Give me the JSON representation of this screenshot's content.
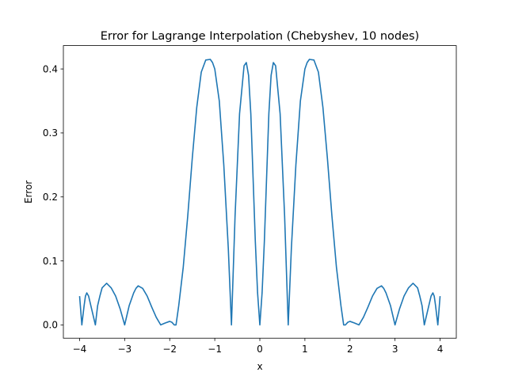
{
  "chart_data": {
    "type": "line",
    "title": "Error for Lagrange Interpolation (Chebyshev, 10 nodes)",
    "xlabel": "x",
    "ylabel": "Error",
    "xlim": [
      -4.36,
      4.36
    ],
    "ylim": [
      -0.0208,
      0.4365
    ],
    "xticks": [
      -4,
      -3,
      -2,
      -1,
      0,
      1,
      2,
      3,
      4
    ],
    "xtick_labels": [
      "−4",
      "−3",
      "−2",
      "−1",
      "0",
      "1",
      "2",
      "3",
      "4"
    ],
    "yticks": [
      0.0,
      0.1,
      0.2,
      0.3,
      0.4
    ],
    "ytick_labels": [
      "0.0",
      "0.1",
      "0.2",
      "0.3",
      "0.4"
    ],
    "grid": false,
    "series": [
      {
        "color": "#1f77b4",
        "x": [
          -4.0,
          -3.95,
          -3.9,
          -3.87,
          -3.84,
          -3.8,
          -3.75,
          -3.7,
          -3.65,
          -3.6,
          -3.55,
          -3.5,
          -3.4,
          -3.3,
          -3.2,
          -3.1,
          -3.0,
          -2.9,
          -2.8,
          -2.75,
          -2.7,
          -2.6,
          -2.5,
          -2.4,
          -2.3,
          -2.2,
          -2.1,
          -2.0,
          -1.95,
          -1.9,
          -1.86,
          -1.8,
          -1.7,
          -1.6,
          -1.5,
          -1.4,
          -1.3,
          -1.2,
          -1.1,
          -1.05,
          -1.0,
          -0.9,
          -0.8,
          -0.7,
          -0.63,
          -0.55,
          -0.45,
          -0.35,
          -0.3,
          -0.25,
          -0.2,
          -0.15,
          -0.1,
          -0.05,
          0.0,
          0.05,
          0.1,
          0.15,
          0.2,
          0.25,
          0.3,
          0.35,
          0.45,
          0.55,
          0.63,
          0.7,
          0.8,
          0.9,
          1.0,
          1.05,
          1.1,
          1.2,
          1.3,
          1.4,
          1.5,
          1.6,
          1.7,
          1.8,
          1.86,
          1.9,
          1.95,
          2.0,
          2.1,
          2.2,
          2.3,
          2.4,
          2.5,
          2.6,
          2.7,
          2.75,
          2.8,
          2.9,
          3.0,
          3.1,
          3.2,
          3.3,
          3.4,
          3.5,
          3.55,
          3.6,
          3.65,
          3.7,
          3.75,
          3.8,
          3.84,
          3.87,
          3.9,
          3.95,
          4.0
        ],
        "y": [
          0.045,
          0.0,
          0.03,
          0.045,
          0.05,
          0.045,
          0.03,
          0.015,
          0.0,
          0.03,
          0.045,
          0.058,
          0.065,
          0.058,
          0.045,
          0.025,
          0.0,
          0.03,
          0.05,
          0.057,
          0.061,
          0.057,
          0.045,
          0.028,
          0.012,
          0.0,
          0.003,
          0.0055,
          0.004,
          0.0,
          0.0,
          0.03,
          0.09,
          0.17,
          0.26,
          0.34,
          0.395,
          0.414,
          0.415,
          0.41,
          0.4,
          0.35,
          0.25,
          0.12,
          0.0,
          0.17,
          0.33,
          0.405,
          0.41,
          0.39,
          0.33,
          0.23,
          0.13,
          0.05,
          0.0,
          0.05,
          0.13,
          0.23,
          0.33,
          0.39,
          0.41,
          0.405,
          0.33,
          0.17,
          0.0,
          0.12,
          0.25,
          0.35,
          0.4,
          0.41,
          0.415,
          0.414,
          0.395,
          0.34,
          0.26,
          0.17,
          0.09,
          0.03,
          0.0,
          0.0,
          0.004,
          0.0055,
          0.003,
          0.0,
          0.012,
          0.028,
          0.045,
          0.057,
          0.061,
          0.057,
          0.05,
          0.03,
          0.0,
          0.025,
          0.045,
          0.058,
          0.065,
          0.058,
          0.045,
          0.03,
          0.0,
          0.015,
          0.03,
          0.045,
          0.05,
          0.045,
          0.03,
          0.0,
          0.045
        ]
      }
    ]
  }
}
